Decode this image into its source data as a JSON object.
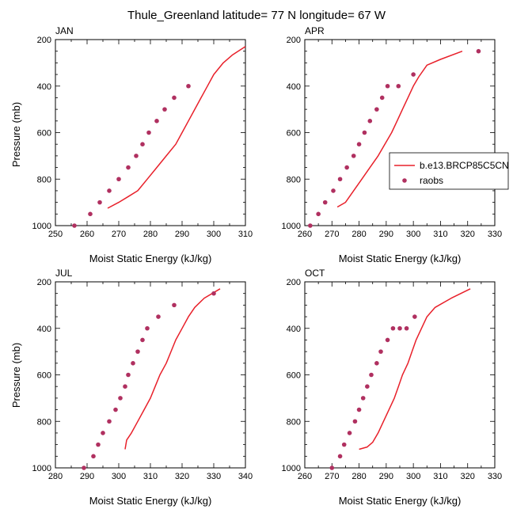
{
  "title": "Thule_Greenland  latitude= 77 N longitude= 67 W",
  "legend": {
    "model": "b.e13.BRCP85C5CN",
    "obs": "raobs"
  },
  "colors": {
    "model": "#e8202a",
    "obs": "#b03060",
    "axis": "#000000"
  },
  "chart_data": [
    {
      "type": "line+scatter",
      "panel": "JAN",
      "title": "JAN",
      "xlabel": "Moist Static Energy (kJ/kg)",
      "ylabel": "Pressure (mb)",
      "xlim": [
        250,
        310
      ],
      "xticks": [
        250,
        260,
        270,
        280,
        290,
        300,
        310
      ],
      "ylim": [
        1000,
        200
      ],
      "yticks": [
        200,
        400,
        600,
        800,
        1000
      ],
      "series": [
        {
          "name": "b.e13.BRCP85C5CN",
          "type": "line",
          "points": [
            [
              266.5,
              925
            ],
            [
              270,
              900
            ],
            [
              273,
              875
            ],
            [
              276,
              850
            ],
            [
              279,
              800
            ],
            [
              282,
              750
            ],
            [
              285,
              700
            ],
            [
              288,
              650
            ],
            [
              290,
              600
            ],
            [
              292,
              550
            ],
            [
              294,
              500
            ],
            [
              296,
              450
            ],
            [
              298,
              400
            ],
            [
              300,
              350
            ],
            [
              303,
              300
            ],
            [
              306,
              265
            ],
            [
              310,
              230
            ]
          ]
        },
        {
          "name": "raobs",
          "type": "scatter",
          "points": [
            [
              256,
              1000
            ],
            [
              261,
              950
            ],
            [
              264,
              900
            ],
            [
              267,
              850
            ],
            [
              270,
              800
            ],
            [
              273,
              750
            ],
            [
              275.5,
              700
            ],
            [
              277.5,
              650
            ],
            [
              279.5,
              600
            ],
            [
              282,
              550
            ],
            [
              284.5,
              500
            ],
            [
              287.5,
              450
            ],
            [
              292,
              400
            ]
          ]
        }
      ]
    },
    {
      "type": "line+scatter",
      "panel": "APR",
      "title": "APR",
      "xlabel": "Moist Static Energy (kJ/kg)",
      "ylabel": "",
      "xlim": [
        260,
        330
      ],
      "xticks": [
        260,
        270,
        280,
        290,
        300,
        310,
        320,
        330
      ],
      "ylim": [
        1000,
        200
      ],
      "yticks": [
        200,
        400,
        600,
        800,
        1000
      ],
      "series": [
        {
          "name": "b.e13.BRCP85C5CN",
          "type": "line",
          "points": [
            [
              272,
              920
            ],
            [
              275,
              900
            ],
            [
              278,
              850
            ],
            [
              281,
              800
            ],
            [
              284,
              750
            ],
            [
              287,
              700
            ],
            [
              289.5,
              650
            ],
            [
              292,
              600
            ],
            [
              294,
              550
            ],
            [
              296,
              500
            ],
            [
              298,
              450
            ],
            [
              300,
              400
            ],
            [
              302,
              360
            ],
            [
              305,
              310
            ],
            [
              310,
              285
            ],
            [
              318,
              250
            ]
          ]
        },
        {
          "name": "raobs",
          "type": "scatter",
          "points": [
            [
              262,
              1000
            ],
            [
              265,
              950
            ],
            [
              267.5,
              900
            ],
            [
              270.5,
              850
            ],
            [
              273,
              800
            ],
            [
              275.5,
              750
            ],
            [
              278,
              700
            ],
            [
              280,
              650
            ],
            [
              282,
              600
            ],
            [
              284,
              550
            ],
            [
              286.5,
              500
            ],
            [
              288.5,
              450
            ],
            [
              290.5,
              400
            ],
            [
              294.5,
              400
            ],
            [
              300,
              350
            ],
            [
              324,
              250
            ]
          ]
        }
      ]
    },
    {
      "type": "line+scatter",
      "panel": "JUL",
      "title": "JUL",
      "xlabel": "Moist Static Energy (kJ/kg)",
      "ylabel": "Pressure (mb)",
      "xlim": [
        280,
        340
      ],
      "xticks": [
        280,
        290,
        300,
        310,
        320,
        330,
        340
      ],
      "ylim": [
        1000,
        200
      ],
      "yticks": [
        200,
        400,
        600,
        800,
        1000
      ],
      "series": [
        {
          "name": "b.e13.BRCP85C5CN",
          "type": "line",
          "points": [
            [
              302,
              920
            ],
            [
              302.5,
              880
            ],
            [
              304,
              850
            ],
            [
              306,
              800
            ],
            [
              308,
              750
            ],
            [
              310,
              700
            ],
            [
              311.5,
              650
            ],
            [
              313,
              600
            ],
            [
              315,
              550
            ],
            [
              316.5,
              500
            ],
            [
              318,
              450
            ],
            [
              320,
              400
            ],
            [
              322,
              350
            ],
            [
              324,
              310
            ],
            [
              327,
              270
            ],
            [
              332,
              230
            ]
          ]
        },
        {
          "name": "raobs",
          "type": "scatter",
          "points": [
            [
              289,
              1000
            ],
            [
              292,
              950
            ],
            [
              293.5,
              900
            ],
            [
              295,
              850
            ],
            [
              297,
              800
            ],
            [
              299,
              750
            ],
            [
              300.5,
              700
            ],
            [
              302,
              650
            ],
            [
              303,
              600
            ],
            [
              304.5,
              550
            ],
            [
              306,
              500
            ],
            [
              307.5,
              450
            ],
            [
              309,
              400
            ],
            [
              312.5,
              350
            ],
            [
              317.5,
              300
            ],
            [
              330,
              250
            ]
          ]
        }
      ]
    },
    {
      "type": "line+scatter",
      "panel": "OCT",
      "title": "OCT",
      "xlabel": "Moist Static Energy (kJ/kg)",
      "ylabel": "",
      "xlim": [
        260,
        330
      ],
      "xticks": [
        260,
        270,
        280,
        290,
        300,
        310,
        320,
        330
      ],
      "ylim": [
        1000,
        200
      ],
      "yticks": [
        200,
        400,
        600,
        800,
        1000
      ],
      "series": [
        {
          "name": "b.e13.BRCP85C5CN",
          "type": "line",
          "points": [
            [
              280,
              920
            ],
            [
              283,
              910
            ],
            [
              285,
              890
            ],
            [
              287,
              850
            ],
            [
              289,
              800
            ],
            [
              291,
              750
            ],
            [
              293,
              700
            ],
            [
              294.5,
              650
            ],
            [
              296,
              600
            ],
            [
              298,
              550
            ],
            [
              299.5,
              500
            ],
            [
              301,
              450
            ],
            [
              303,
              400
            ],
            [
              305,
              350
            ],
            [
              308,
              310
            ],
            [
              314,
              270
            ],
            [
              321,
              230
            ]
          ]
        },
        {
          "name": "raobs",
          "type": "scatter",
          "points": [
            [
              270,
              1000
            ],
            [
              273,
              950
            ],
            [
              274.5,
              900
            ],
            [
              276.5,
              850
            ],
            [
              278.5,
              800
            ],
            [
              280,
              750
            ],
            [
              281.5,
              700
            ],
            [
              283,
              650
            ],
            [
              284.5,
              600
            ],
            [
              286.5,
              550
            ],
            [
              288,
              500
            ],
            [
              290.5,
              450
            ],
            [
              292.5,
              400
            ],
            [
              295,
              400
            ],
            [
              297.5,
              400
            ],
            [
              300.5,
              350
            ]
          ]
        }
      ]
    }
  ]
}
